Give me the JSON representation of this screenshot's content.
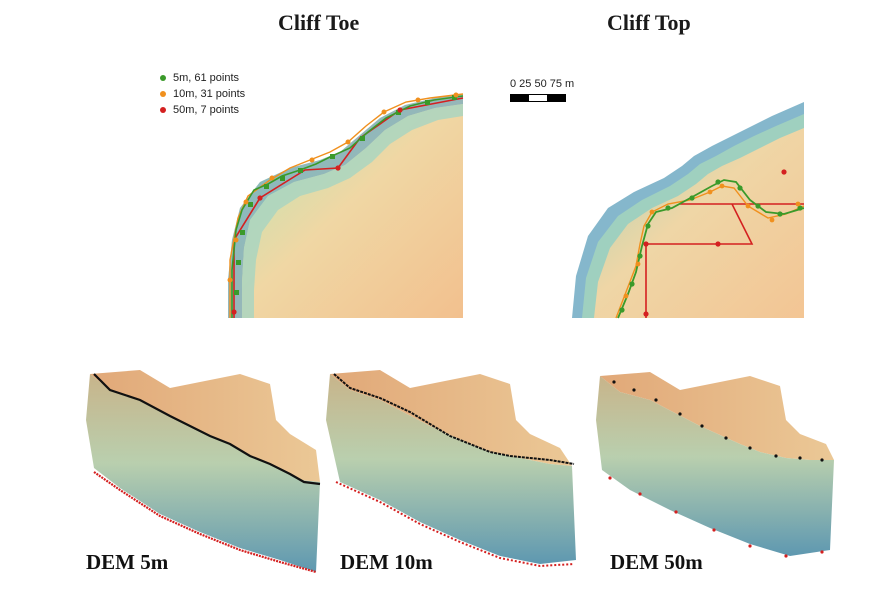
{
  "titles": {
    "cliff_toe": "Cliff Toe",
    "cliff_top": "Cliff Top"
  },
  "legend": [
    {
      "label": "5m, 61 points",
      "color": "#3a9a2a"
    },
    {
      "label": "10m, 31 points",
      "color": "#f0901e"
    },
    {
      "label": "50m, 7 points",
      "color": "#d42020"
    }
  ],
  "scale_bar": {
    "labels": "0  25 50 75 m"
  },
  "dem_panels": [
    {
      "label": "DEM 5m"
    },
    {
      "label": "DEM 10m"
    },
    {
      "label": "DEM 50m"
    }
  ],
  "colors": {
    "dem_high": "#f4c79a",
    "dem_mid": "#e8dca0",
    "dem_low": "#4a90b0",
    "line_5m": "#3a9a2a",
    "line_10m": "#f0901e",
    "line_50m": "#d42020"
  }
}
